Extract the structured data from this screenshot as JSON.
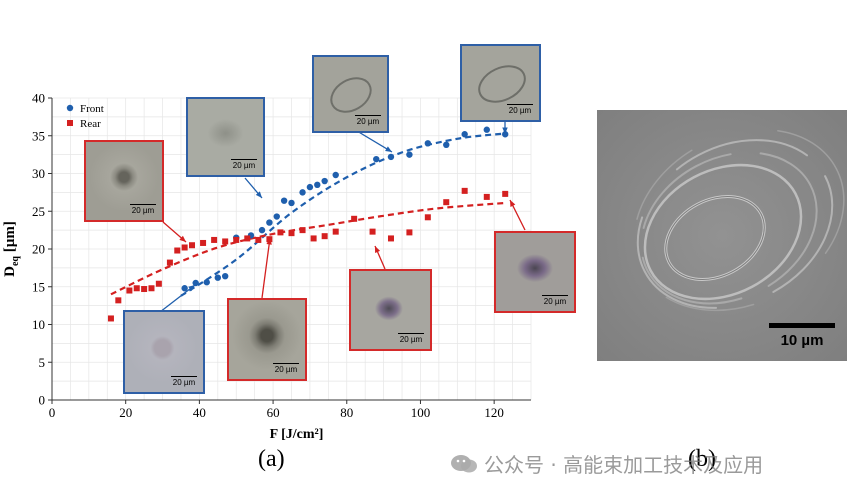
{
  "chart_data": {
    "type": "scatter",
    "xlabel": "F [J/cm²]",
    "ylabel_main": "D",
    "ylabel_sub": "eq",
    "ylabel_unit": " [µm]",
    "xlim": [
      0,
      130
    ],
    "ylim": [
      0,
      40
    ],
    "xticks": [
      0,
      20,
      40,
      60,
      80,
      100,
      120
    ],
    "yticks": [
      0,
      5,
      10,
      15,
      20,
      25,
      30,
      35,
      40
    ],
    "grid": true,
    "legend_position": "top-left",
    "series": [
      {
        "name": "Front",
        "marker": "circle",
        "color": "#1f5fad",
        "points": [
          [
            36,
            14.8
          ],
          [
            39,
            15.5
          ],
          [
            42,
            15.6
          ],
          [
            45,
            16.2
          ],
          [
            47,
            16.4
          ],
          [
            50,
            21.5
          ],
          [
            54,
            21.8
          ],
          [
            57,
            22.5
          ],
          [
            59,
            23.5
          ],
          [
            61,
            24.3
          ],
          [
            63,
            26.4
          ],
          [
            65,
            26.1
          ],
          [
            68,
            27.5
          ],
          [
            70,
            28.2
          ],
          [
            72,
            28.5
          ],
          [
            74,
            29.0
          ],
          [
            77,
            29.8
          ],
          [
            88,
            31.9
          ],
          [
            92,
            32.2
          ],
          [
            97,
            32.5
          ],
          [
            102,
            34.0
          ],
          [
            107,
            33.8
          ],
          [
            112,
            35.2
          ],
          [
            118,
            35.8
          ],
          [
            123,
            35.2
          ]
        ],
        "trend": [
          [
            35,
            13.8
          ],
          [
            50,
            18.6
          ],
          [
            65,
            24.8
          ],
          [
            80,
            29.5
          ],
          [
            95,
            32.8
          ],
          [
            110,
            34.6
          ],
          [
            123,
            35.3
          ]
        ]
      },
      {
        "name": "Rear",
        "marker": "square",
        "color": "#d42020",
        "points": [
          [
            16,
            10.8
          ],
          [
            18,
            13.2
          ],
          [
            21,
            14.5
          ],
          [
            23,
            14.8
          ],
          [
            25,
            14.7
          ],
          [
            27,
            14.8
          ],
          [
            29,
            15.4
          ],
          [
            32,
            18.2
          ],
          [
            34,
            19.8
          ],
          [
            36,
            20.2
          ],
          [
            38,
            20.5
          ],
          [
            41,
            20.8
          ],
          [
            44,
            21.2
          ],
          [
            47,
            21.0
          ],
          [
            50,
            21.2
          ],
          [
            53,
            21.4
          ],
          [
            56,
            21.2
          ],
          [
            59,
            21.3
          ],
          [
            62,
            22.2
          ],
          [
            65,
            22.1
          ],
          [
            68,
            22.5
          ],
          [
            71,
            21.4
          ],
          [
            74,
            21.7
          ],
          [
            77,
            22.3
          ],
          [
            82,
            24.0
          ],
          [
            87,
            22.3
          ],
          [
            92,
            21.4
          ],
          [
            97,
            22.2
          ],
          [
            102,
            24.2
          ],
          [
            107,
            26.2
          ],
          [
            112,
            27.7
          ],
          [
            118,
            26.9
          ],
          [
            123,
            27.3
          ]
        ],
        "trend": [
          [
            16,
            14.0
          ],
          [
            30,
            17.3
          ],
          [
            45,
            20.2
          ],
          [
            60,
            22.0
          ],
          [
            75,
            23.2
          ],
          [
            90,
            24.4
          ],
          [
            105,
            25.4
          ],
          [
            123,
            26.1
          ]
        ]
      }
    ]
  },
  "insets": [
    {
      "name": "inset-front-low",
      "scale": "20 µm"
    },
    {
      "name": "inset-front-mid",
      "scale": "20 µm"
    },
    {
      "name": "inset-front-high",
      "scale": "20 µm"
    },
    {
      "name": "inset-front-top",
      "scale": "20 µm"
    },
    {
      "name": "inset-rear-low",
      "scale": "20 µm"
    },
    {
      "name": "inset-rear-mid",
      "scale": "20 µm"
    },
    {
      "name": "inset-rear-high",
      "scale": "20 µm"
    },
    {
      "name": "inset-rear-top",
      "scale": "20 µm"
    }
  ],
  "panel_a_label": "(a)",
  "panel_b_label": "(b)",
  "panel_b_scale": "10 µm",
  "watermark": "公众号 · 高能束加工技术及应用"
}
